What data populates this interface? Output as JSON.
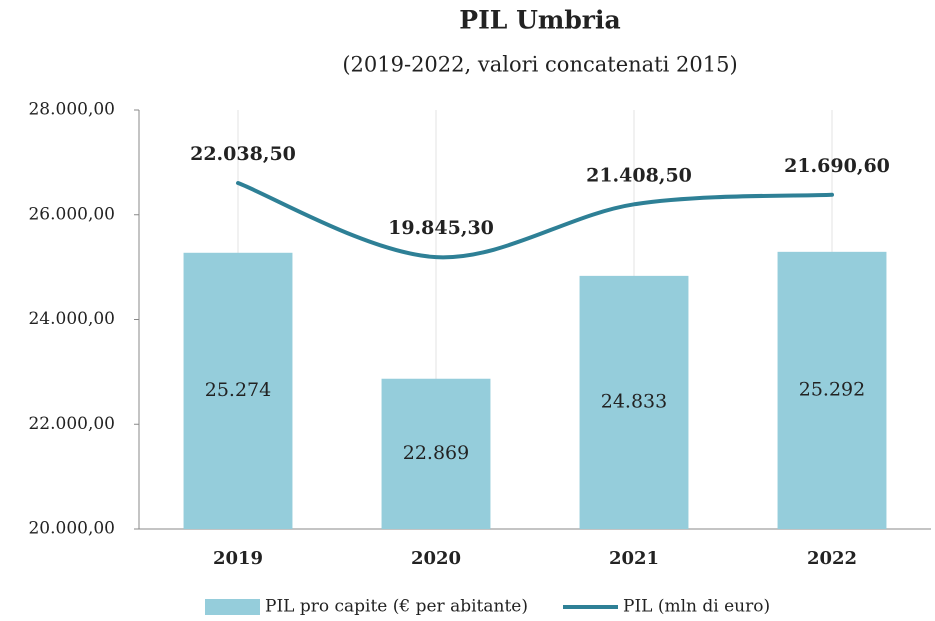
{
  "chart_data": {
    "type": "bar",
    "title": "PIL Umbria",
    "subtitle": "(2019-2022, valori concatenati 2015)",
    "categories": [
      "2019",
      "2020",
      "2021",
      "2022"
    ],
    "series": [
      {
        "name": "PIL pro capite (€ per abitante)",
        "type": "bar",
        "color": "#95cddb",
        "values": [
          25274,
          22869,
          24833,
          25292
        ],
        "value_labels": [
          "25.274",
          "22.869",
          "24.833",
          "25.292"
        ]
      },
      {
        "name": "PIL (mln di euro)",
        "type": "line",
        "axis": "y2",
        "color": "#2e8096",
        "values": [
          22038.5,
          19845.3,
          21408.5,
          21690.6
        ],
        "value_labels": [
          "22.038,50",
          "19.845,30",
          "21.408,50",
          "21.690,60"
        ]
      }
    ],
    "ylim": [
      20000,
      28000
    ],
    "yticks": [
      {
        "value": 20000,
        "label": "20.000,00"
      },
      {
        "value": 22000,
        "label": "22.000,00"
      },
      {
        "value": 24000,
        "label": "24.000,00"
      },
      {
        "value": 26000,
        "label": "26.000,00"
      },
      {
        "value": 28000,
        "label": "28.000,00"
      }
    ],
    "y2lim": [
      11800,
      24200
    ],
    "grid": true,
    "legend": "bottom"
  }
}
